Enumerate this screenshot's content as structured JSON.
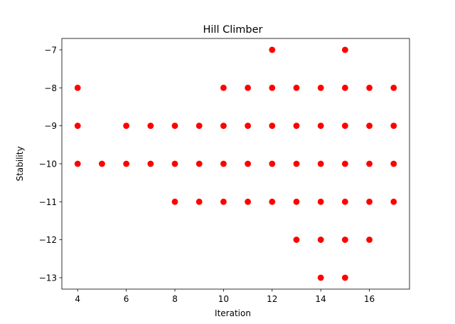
{
  "chart_data": {
    "type": "scatter",
    "title": "Hill Climber",
    "xlabel": "Iteration",
    "ylabel": "Stability",
    "xlim": [
      3.35,
      17.65
    ],
    "ylim": [
      -13.3,
      -6.7
    ],
    "x_ticks": [
      4,
      6,
      8,
      10,
      12,
      14,
      16
    ],
    "y_ticks": [
      -7,
      -8,
      -9,
      -10,
      -11,
      -12,
      -13
    ],
    "x_tick_labels": [
      "4",
      "6",
      "8",
      "10",
      "12",
      "14",
      "16"
    ],
    "y_tick_labels": [
      "−7",
      "−8",
      "−9",
      "−10",
      "−11",
      "−12",
      "−13"
    ],
    "grid": false,
    "marker_color": "#ff0000",
    "points": [
      {
        "x": 4,
        "y": -8
      },
      {
        "x": 4,
        "y": -9
      },
      {
        "x": 4,
        "y": -10
      },
      {
        "x": 5,
        "y": -10
      },
      {
        "x": 6,
        "y": -9
      },
      {
        "x": 6,
        "y": -10
      },
      {
        "x": 7,
        "y": -9
      },
      {
        "x": 7,
        "y": -10
      },
      {
        "x": 8,
        "y": -9
      },
      {
        "x": 8,
        "y": -10
      },
      {
        "x": 8,
        "y": -11
      },
      {
        "x": 9,
        "y": -9
      },
      {
        "x": 9,
        "y": -10
      },
      {
        "x": 9,
        "y": -11
      },
      {
        "x": 10,
        "y": -8
      },
      {
        "x": 10,
        "y": -9
      },
      {
        "x": 10,
        "y": -10
      },
      {
        "x": 10,
        "y": -11
      },
      {
        "x": 11,
        "y": -8
      },
      {
        "x": 11,
        "y": -9
      },
      {
        "x": 11,
        "y": -10
      },
      {
        "x": 11,
        "y": -11
      },
      {
        "x": 12,
        "y": -7
      },
      {
        "x": 12,
        "y": -8
      },
      {
        "x": 12,
        "y": -9
      },
      {
        "x": 12,
        "y": -10
      },
      {
        "x": 12,
        "y": -11
      },
      {
        "x": 13,
        "y": -8
      },
      {
        "x": 13,
        "y": -9
      },
      {
        "x": 13,
        "y": -10
      },
      {
        "x": 13,
        "y": -11
      },
      {
        "x": 13,
        "y": -12
      },
      {
        "x": 14,
        "y": -8
      },
      {
        "x": 14,
        "y": -9
      },
      {
        "x": 14,
        "y": -10
      },
      {
        "x": 14,
        "y": -11
      },
      {
        "x": 14,
        "y": -12
      },
      {
        "x": 14,
        "y": -13
      },
      {
        "x": 15,
        "y": -7
      },
      {
        "x": 15,
        "y": -8
      },
      {
        "x": 15,
        "y": -9
      },
      {
        "x": 15,
        "y": -10
      },
      {
        "x": 15,
        "y": -11
      },
      {
        "x": 15,
        "y": -12
      },
      {
        "x": 15,
        "y": -13
      },
      {
        "x": 16,
        "y": -8
      },
      {
        "x": 16,
        "y": -9
      },
      {
        "x": 16,
        "y": -10
      },
      {
        "x": 16,
        "y": -11
      },
      {
        "x": 16,
        "y": -12
      },
      {
        "x": 17,
        "y": -8
      },
      {
        "x": 17,
        "y": -9
      },
      {
        "x": 17,
        "y": -10
      },
      {
        "x": 17,
        "y": -11
      }
    ]
  }
}
